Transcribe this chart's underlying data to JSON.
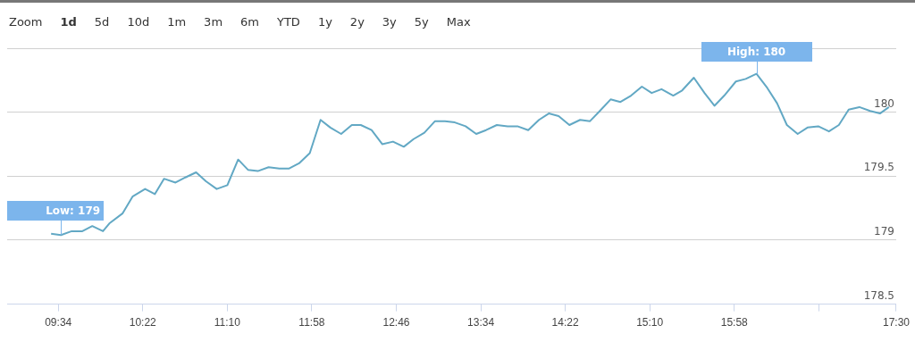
{
  "chart_data": {
    "type": "line",
    "x": [
      9.499,
      9.592,
      9.694,
      9.795,
      9.889,
      9.99,
      10.05,
      10.177,
      10.27,
      10.389,
      10.482,
      10.568,
      10.677,
      10.77,
      10.872,
      10.965,
      11.067,
      11.168,
      11.27,
      11.363,
      11.456,
      11.558,
      11.66,
      11.753,
      11.846,
      11.948,
      12.05,
      12.143,
      12.245,
      12.346,
      12.431,
      12.533,
      12.634,
      12.736,
      12.838,
      12.931,
      13.033,
      13.134,
      13.228,
      13.321,
      13.423,
      13.524,
      13.617,
      13.719,
      13.821,
      13.914,
      14.016,
      14.118,
      14.211,
      14.304,
      14.406,
      14.507,
      14.601,
      14.694,
      14.796,
      14.889,
      14.99,
      15.092,
      15.185,
      15.278,
      15.389,
      15.473,
      15.584,
      15.685,
      15.779,
      15.872,
      15.982,
      16.075,
      16.177,
      16.279,
      16.372,
      16.465,
      16.567,
      16.66,
      16.762,
      16.863,
      16.957,
      17.05,
      17.151,
      17.253,
      17.346,
      17.431
    ],
    "series": [
      {
        "color": "#62a8c4",
        "values": [
          179.05,
          179.04,
          179.07,
          179.07,
          179.11,
          179.07,
          179.13,
          179.21,
          179.34,
          179.4,
          179.36,
          179.48,
          179.45,
          179.49,
          179.53,
          179.46,
          179.4,
          179.43,
          179.63,
          179.55,
          179.54,
          179.57,
          179.56,
          179.56,
          179.6,
          179.68,
          179.94,
          179.88,
          179.83,
          179.9,
          179.9,
          179.86,
          179.75,
          179.77,
          179.73,
          179.79,
          179.84,
          179.93,
          179.93,
          179.92,
          179.89,
          179.83,
          179.86,
          179.9,
          179.89,
          179.89,
          179.86,
          179.94,
          179.99,
          179.97,
          179.9,
          179.94,
          179.93,
          180.01,
          180.1,
          180.08,
          180.13,
          180.2,
          180.15,
          180.18,
          180.13,
          180.17,
          180.27,
          180.15,
          180.05,
          180.13,
          180.24,
          180.26,
          180.3,
          180.19,
          180.07,
          179.9,
          179.83,
          179.88,
          179.89,
          179.85,
          179.9,
          180.02,
          180.04,
          180.01,
          179.99,
          180.04
        ]
      }
    ],
    "xlim": [
      9.083,
      17.5
    ],
    "xticks": [
      {
        "value": 9.567,
        "label": "09:34"
      },
      {
        "value": 10.367,
        "label": "10:22"
      },
      {
        "value": 11.167,
        "label": "11:10"
      },
      {
        "value": 11.967,
        "label": "11:58"
      },
      {
        "value": 12.767,
        "label": "12:46"
      },
      {
        "value": 13.567,
        "label": "13:34"
      },
      {
        "value": 14.367,
        "label": "14:22"
      },
      {
        "value": 15.167,
        "label": "15:10"
      },
      {
        "value": 15.967,
        "label": "15:58"
      },
      {
        "value": 16.767,
        "label": null
      },
      {
        "value": 17.5,
        "label": "17:30"
      }
    ],
    "ylim": [
      178.5,
      180.5
    ],
    "yticks": [
      178.5,
      179,
      179.5,
      180,
      {
        "value": 180.5,
        "label": null
      }
    ],
    "annotations": [
      "Zoom",
      "1d",
      "5d",
      "10d",
      "1m",
      "3m",
      "6m",
      "YTD",
      "1y",
      "2y",
      "3y",
      "5y",
      "Max",
      {
        "text": "Low: 179",
        "x": 9.592,
        "y": 179.04
      },
      {
        "text": "High: 180",
        "x": 16.177,
        "y": 180.3
      }
    ],
    "grid": "y",
    "legend": false,
    "marker": "none",
    "line_style": "solid"
  }
}
